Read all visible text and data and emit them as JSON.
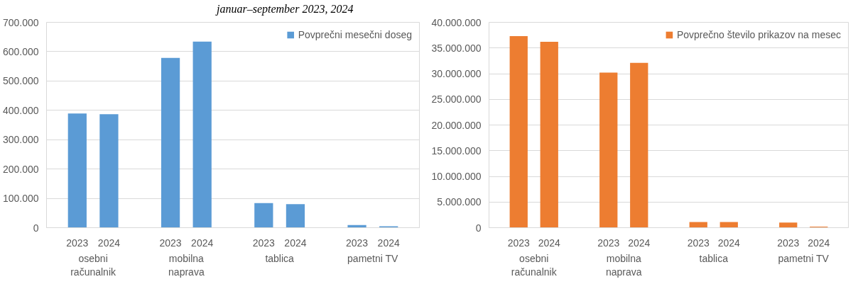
{
  "chart_data": [
    {
      "type": "bar",
      "title": "januar–september 2023, 2024",
      "categories": [
        "2023",
        "2024",
        "2023",
        "2024",
        "2023",
        "2024",
        "2023",
        "2024"
      ],
      "annotations": [
        "osebni računalnik",
        "mobilna naprava",
        "tablica",
        "pametni TV"
      ],
      "series": [
        {
          "name": "Povprečni mesečni doseg",
          "color": "#5b9bd5",
          "values": [
            389000,
            387000,
            579000,
            634000,
            84000,
            80000,
            9000,
            5000
          ]
        }
      ],
      "ylim": [
        0,
        700000
      ],
      "yticks": [
        0,
        {
          "value": 100000,
          "label": "100.000"
        },
        {
          "value": 200000,
          "label": "200.000"
        },
        {
          "value": 300000,
          "label": "300.000"
        },
        {
          "value": 400000,
          "label": "400.000"
        },
        {
          "value": 500000,
          "label": "500.000"
        },
        {
          "value": 600000,
          "label": "600.000"
        },
        {
          "value": 700000,
          "label": "700.000"
        }
      ],
      "grid": "y",
      "legend": "top right"
    },
    {
      "type": "bar",
      "categories": [
        "2023",
        "2024",
        "2023",
        "2024",
        "2023",
        "2024",
        "2023",
        "2024"
      ],
      "annotations": [
        "osebni računalnik",
        "mobilna naprava",
        "tablica",
        "pametni TV"
      ],
      "series": [
        {
          "name": "Povprečno število prikazov na mesec",
          "color": "#ed7d31",
          "values": [
            37300000,
            36200000,
            30200000,
            32100000,
            1100000,
            1100000,
            1000000,
            200000
          ]
        }
      ],
      "ylim": [
        0,
        40000000
      ],
      "yticks": [
        0,
        {
          "value": 5000000,
          "label": "5.000.000"
        },
        {
          "value": 10000000,
          "label": "10.000.000"
        },
        {
          "value": 15000000,
          "label": "15.000.000"
        },
        {
          "value": 20000000,
          "label": "20.000.000"
        },
        {
          "value": 25000000,
          "label": "25.000.000"
        },
        {
          "value": 30000000,
          "label": "30.000.000"
        },
        {
          "value": 35000000,
          "label": "35.000.000"
        },
        {
          "value": 40000000,
          "label": "40.000.000"
        }
      ],
      "grid": "y",
      "legend": "top right"
    }
  ]
}
